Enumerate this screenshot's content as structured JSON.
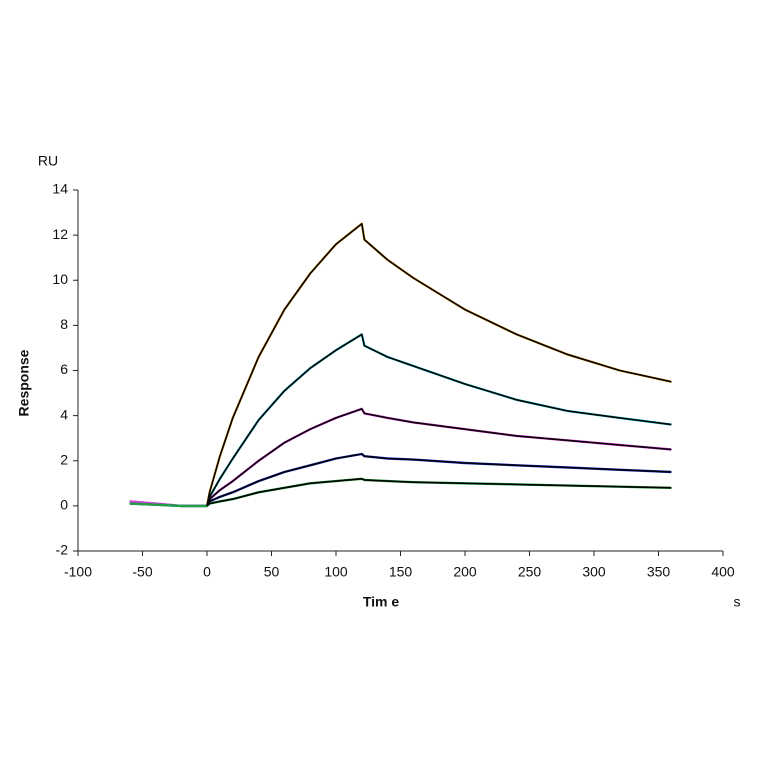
{
  "chart_data": {
    "type": "line",
    "y_unit": "RU",
    "ylabel": "Response",
    "xlabel": "Tim e",
    "x_unit": "s",
    "x": [
      -60,
      -40,
      -20,
      0,
      2,
      10,
      20,
      40,
      60,
      80,
      100,
      120,
      122,
      140,
      160,
      200,
      240,
      280,
      320,
      360
    ],
    "series": [
      {
        "color": "#f0a830",
        "values": [
          0.2,
          0.1,
          0,
          0,
          0.6,
          2.2,
          3.9,
          6.6,
          8.7,
          10.3,
          11.6,
          12.5,
          11.8,
          10.9,
          10.1,
          8.7,
          7.6,
          6.7,
          6.0,
          5.5
        ]
      },
      {
        "color": "#30c8d8",
        "values": [
          0.2,
          0.1,
          0,
          0,
          0.4,
          1.2,
          2.1,
          3.8,
          5.1,
          6.1,
          6.9,
          7.6,
          7.1,
          6.6,
          6.2,
          5.4,
          4.7,
          4.2,
          3.9,
          3.6
        ]
      },
      {
        "color": "#e040e0",
        "values": [
          0.2,
          0.1,
          0,
          0,
          0.3,
          0.7,
          1.1,
          2.0,
          2.8,
          3.4,
          3.9,
          4.3,
          4.1,
          3.9,
          3.7,
          3.4,
          3.1,
          2.9,
          2.7,
          2.5
        ]
      },
      {
        "color": "#2030d0",
        "values": [
          0.1,
          0.05,
          0,
          0,
          0.2,
          0.4,
          0.6,
          1.1,
          1.5,
          1.8,
          2.1,
          2.3,
          2.2,
          2.1,
          2.05,
          1.9,
          1.8,
          1.7,
          1.6,
          1.5
        ]
      },
      {
        "color": "#20a040",
        "values": [
          0.1,
          0.05,
          0,
          0,
          0.1,
          0.2,
          0.3,
          0.6,
          0.8,
          1.0,
          1.1,
          1.2,
          1.15,
          1.1,
          1.05,
          1.0,
          0.95,
          0.9,
          0.85,
          0.8
        ]
      },
      {
        "color": "#000000",
        "values": [
          null,
          null,
          null,
          0,
          0.6,
          2.2,
          3.9,
          6.6,
          8.7,
          10.3,
          11.6,
          12.5,
          11.8,
          10.9,
          10.1,
          8.7,
          7.6,
          6.7,
          6.0,
          5.5
        ]
      },
      {
        "color": "#000000",
        "values": [
          null,
          null,
          null,
          0,
          0.4,
          1.2,
          2.1,
          3.8,
          5.1,
          6.1,
          6.9,
          7.6,
          7.1,
          6.6,
          6.2,
          5.4,
          4.7,
          4.2,
          3.9,
          3.6
        ]
      },
      {
        "color": "#000000",
        "values": [
          null,
          null,
          null,
          0,
          0.3,
          0.7,
          1.1,
          2.0,
          2.8,
          3.4,
          3.9,
          4.3,
          4.1,
          3.9,
          3.7,
          3.4,
          3.1,
          2.9,
          2.7,
          2.5
        ]
      },
      {
        "color": "#000000",
        "values": [
          null,
          null,
          null,
          0,
          0.2,
          0.4,
          0.6,
          1.1,
          1.5,
          1.8,
          2.1,
          2.3,
          2.2,
          2.1,
          2.05,
          1.9,
          1.8,
          1.7,
          1.6,
          1.5
        ]
      },
      {
        "color": "#000000",
        "values": [
          null,
          null,
          null,
          0,
          0.1,
          0.2,
          0.3,
          0.6,
          0.8,
          1.0,
          1.1,
          1.2,
          1.15,
          1.1,
          1.05,
          1.0,
          0.95,
          0.9,
          0.85,
          0.8
        ]
      }
    ],
    "xlim": [
      -100,
      400
    ],
    "xticks": [
      -100,
      -50,
      0,
      50,
      100,
      150,
      200,
      250,
      300,
      350,
      400
    ],
    "ylim": [
      -2,
      14
    ],
    "yticks": [
      -2,
      0,
      2,
      4,
      6,
      8,
      10,
      12,
      14
    ]
  }
}
